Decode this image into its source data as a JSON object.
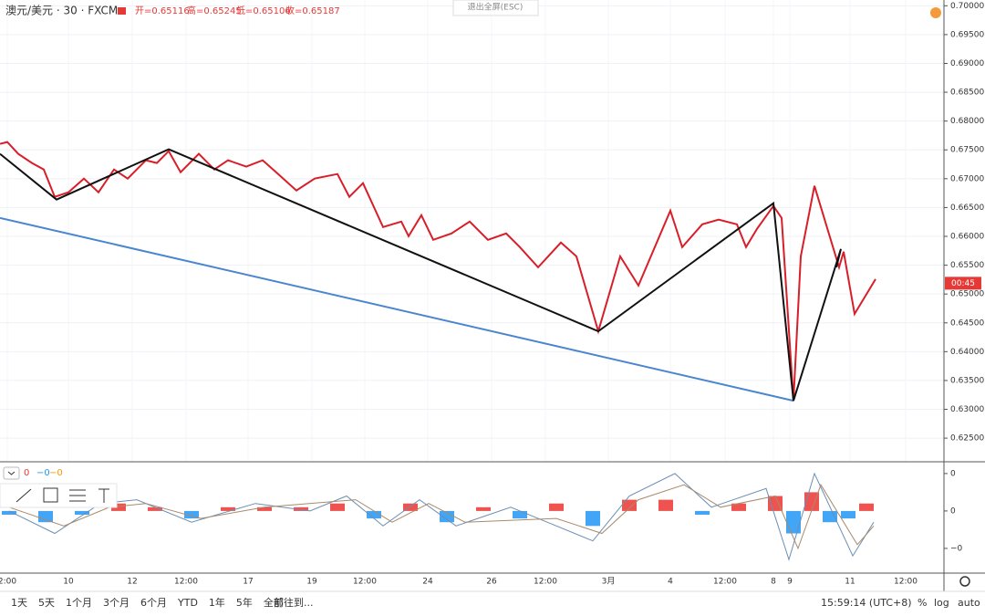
{
  "header": {
    "symbol": "澳元/美元 · 30 · FXCM",
    "open": "开=0.65116",
    "high": "高=0.65245",
    "low": "低=0.65106",
    "close": "收=0.65187",
    "exit_fullscreen": "退出全屏(ESC)"
  },
  "chart_data": [
    {
      "type": "line",
      "grid": true,
      "xlim": [
        0,
        1035
      ],
      "ylim": [
        0.6209,
        0.701
      ],
      "yticks": [
        {
          "value": 0.625,
          "label": "0.62500"
        },
        {
          "value": 0.63,
          "label": "0.63000"
        },
        {
          "value": 0.635,
          "label": "0.63500"
        },
        {
          "value": 0.64,
          "label": "0.64000"
        },
        {
          "value": 0.645,
          "label": "0.64500"
        },
        {
          "value": 0.65,
          "label": "0.65000"
        },
        {
          "value": 0.655,
          "label": "0.65500"
        },
        {
          "value": 0.66,
          "label": "0.66000"
        },
        {
          "value": 0.665,
          "label": "0.66500"
        },
        {
          "value": 0.67,
          "label": "0.67000"
        },
        {
          "value": 0.675,
          "label": "0.67500"
        },
        {
          "value": 0.68,
          "label": "0.68000"
        },
        {
          "value": 0.685,
          "label": "0.68500"
        },
        {
          "value": 0.69,
          "label": "0.69000"
        },
        {
          "value": 0.695,
          "label": "0.69500"
        },
        {
          "value": 0.7,
          "label": "0.70000"
        }
      ],
      "xticks": [
        {
          "value": 8,
          "label": "2:00"
        },
        {
          "value": 75,
          "label": "10"
        },
        {
          "value": 145,
          "label": "12"
        },
        {
          "value": 204,
          "label": "12:00"
        },
        {
          "value": 272,
          "label": "17"
        },
        {
          "value": 342,
          "label": "19"
        },
        {
          "value": 400,
          "label": "12:00"
        },
        {
          "value": 469,
          "label": "24"
        },
        {
          "value": 539,
          "label": "26"
        },
        {
          "value": 598,
          "label": "12:00"
        },
        {
          "value": 667,
          "label": "3月"
        },
        {
          "value": 735,
          "label": "4"
        },
        {
          "value": 795,
          "label": "12:00"
        },
        {
          "value": 848,
          "label": "8"
        },
        {
          "value": 866,
          "label": "9"
        },
        {
          "value": 932,
          "label": "11"
        },
        {
          "value": 993,
          "label": "12:00"
        }
      ],
      "last_price": 0.65187,
      "countdown": "00:45",
      "last_color": "#e53935",
      "series": [
        {
          "color": "#4a86d0",
          "width": 2,
          "x": [
            0,
            870
          ],
          "values": [
            0.6632,
            0.63149
          ]
        },
        {
          "color": "#d81e28",
          "width": 2,
          "x": [
            0,
            8,
            20,
            35,
            48,
            60,
            75,
            92,
            108,
            125,
            140,
            160,
            172,
            185,
            198,
            218,
            235,
            250,
            270,
            288,
            305,
            325,
            345,
            370,
            383,
            398,
            420,
            440,
            448,
            462,
            475,
            495,
            515,
            535,
            555,
            570,
            590,
            615,
            632,
            656,
            680,
            700,
            735,
            748,
            770,
            788,
            808,
            818,
            830,
            848,
            857,
            870,
            878,
            893,
            920,
            925,
            937,
            960
          ],
          "values": [
            0.67605,
            0.67637,
            0.67431,
            0.67272,
            0.67161,
            0.66685,
            0.66765,
            0.67002,
            0.66765,
            0.67161,
            0.67002,
            0.6732,
            0.67272,
            0.67478,
            0.67113,
            0.67431,
            0.67161,
            0.6732,
            0.67209,
            0.6732,
            0.67082,
            0.66796,
            0.67002,
            0.67082,
            0.66685,
            0.66923,
            0.66162,
            0.66257,
            0.66003,
            0.66368,
            0.6594,
            0.66051,
            0.66257,
            0.6594,
            0.66051,
            0.65813,
            0.65464,
            0.65892,
            0.65654,
            0.64354,
            0.65654,
            0.65147,
            0.66447,
            0.65813,
            0.66209,
            0.66289,
            0.66209,
            0.65813,
            0.6613,
            0.66527,
            0.6632,
            0.63149,
            0.65654,
            0.66876,
            0.65464,
            0.65734,
            0.64655,
            0.65258
          ]
        },
        {
          "color": "#111111",
          "width": 2,
          "x": [
            0,
            62,
            185,
            656,
            848,
            870,
            922,
            917
          ],
          "values": [
            0.67431,
            0.66638,
            0.6751,
            0.64354,
            0.66574,
            0.63149,
            0.65781,
            0.65464
          ]
        }
      ]
    },
    {
      "type": "oscillator",
      "xlim": [
        0,
        1035
      ],
      "ylim": [
        -0.00166,
        0.00129
      ],
      "yticks": [
        {
          "value": 0.001,
          "label": "0"
        },
        0,
        {
          "value": -0.001,
          "label": "−0"
        }
      ],
      "legend": [
        {
          "text": "0",
          "color": "#e53935"
        },
        {
          "text": "−0",
          "color": "#2196f3"
        },
        {
          "text": "−0",
          "color": "#ff9800"
        }
      ],
      "histogram": {
        "up_color": "#ef5350",
        "down_color": "#42a5f5",
        "x": [
          10,
          50,
          90,
          130,
          170,
          210,
          250,
          290,
          330,
          370,
          410,
          450,
          490,
          530,
          570,
          610,
          650,
          690,
          730,
          770,
          810,
          850,
          870,
          890,
          910,
          930,
          950
        ],
        "values": [
          -0.0001,
          -0.0003,
          -0.0001,
          0.0002,
          0.0001,
          -0.0002,
          0.0001,
          0.0001,
          0.0001,
          0.0002,
          -0.0002,
          0.0002,
          -0.0003,
          0.0001,
          -0.0002,
          0.0002,
          -0.0004,
          0.0003,
          0.0003,
          -0.0001,
          0.0002,
          0.0004,
          -0.0006,
          0.0005,
          -0.0003,
          -0.0002,
          0.0002
        ]
      },
      "series": [
        {
          "color": "#6a8fb5",
          "width": 1,
          "x": [
            10,
            60,
            110,
            150,
            210,
            280,
            340,
            380,
            420,
            460,
            500,
            560,
            600,
            650,
            690,
            740,
            780,
            840,
            865,
            893,
            935,
            958
          ],
          "values": [
            0,
            -0.0006,
            0.0002,
            0.0003,
            -0.0003,
            0.0002,
            0,
            0.0004,
            -0.0004,
            0.0003,
            -0.0004,
            0.0001,
            -0.0003,
            -0.0008,
            0.0004,
            0.001,
            0.0001,
            0.0006,
            -0.0013,
            0.001,
            -0.0012,
            -0.0003
          ]
        },
        {
          "color": "#a98a6a",
          "width": 1,
          "x": [
            10,
            70,
            120,
            160,
            220,
            290,
            390,
            430,
            470,
            510,
            610,
            660,
            700,
            750,
            790,
            850,
            875,
            900,
            940,
            958
          ],
          "values": [
            0.0001,
            -0.0004,
            0.0001,
            0.0002,
            -0.0002,
            0.0001,
            0.0003,
            -0.0003,
            0.0002,
            -0.0003,
            -0.0002,
            -0.0006,
            0.0003,
            0.0007,
            0.0001,
            0.0004,
            -0.001,
            0.0007,
            -0.0009,
            -0.0004
          ]
        }
      ]
    }
  ],
  "toolbar": {
    "ranges": [
      "1天",
      "5天",
      "1个月",
      "3个月",
      "6个月",
      "YTD",
      "1年",
      "5年",
      "全部"
    ],
    "goto": "前往到...",
    "clock": "15:59:14 (UTC+8)",
    "percent": "%",
    "log": "log",
    "auto": "auto"
  }
}
